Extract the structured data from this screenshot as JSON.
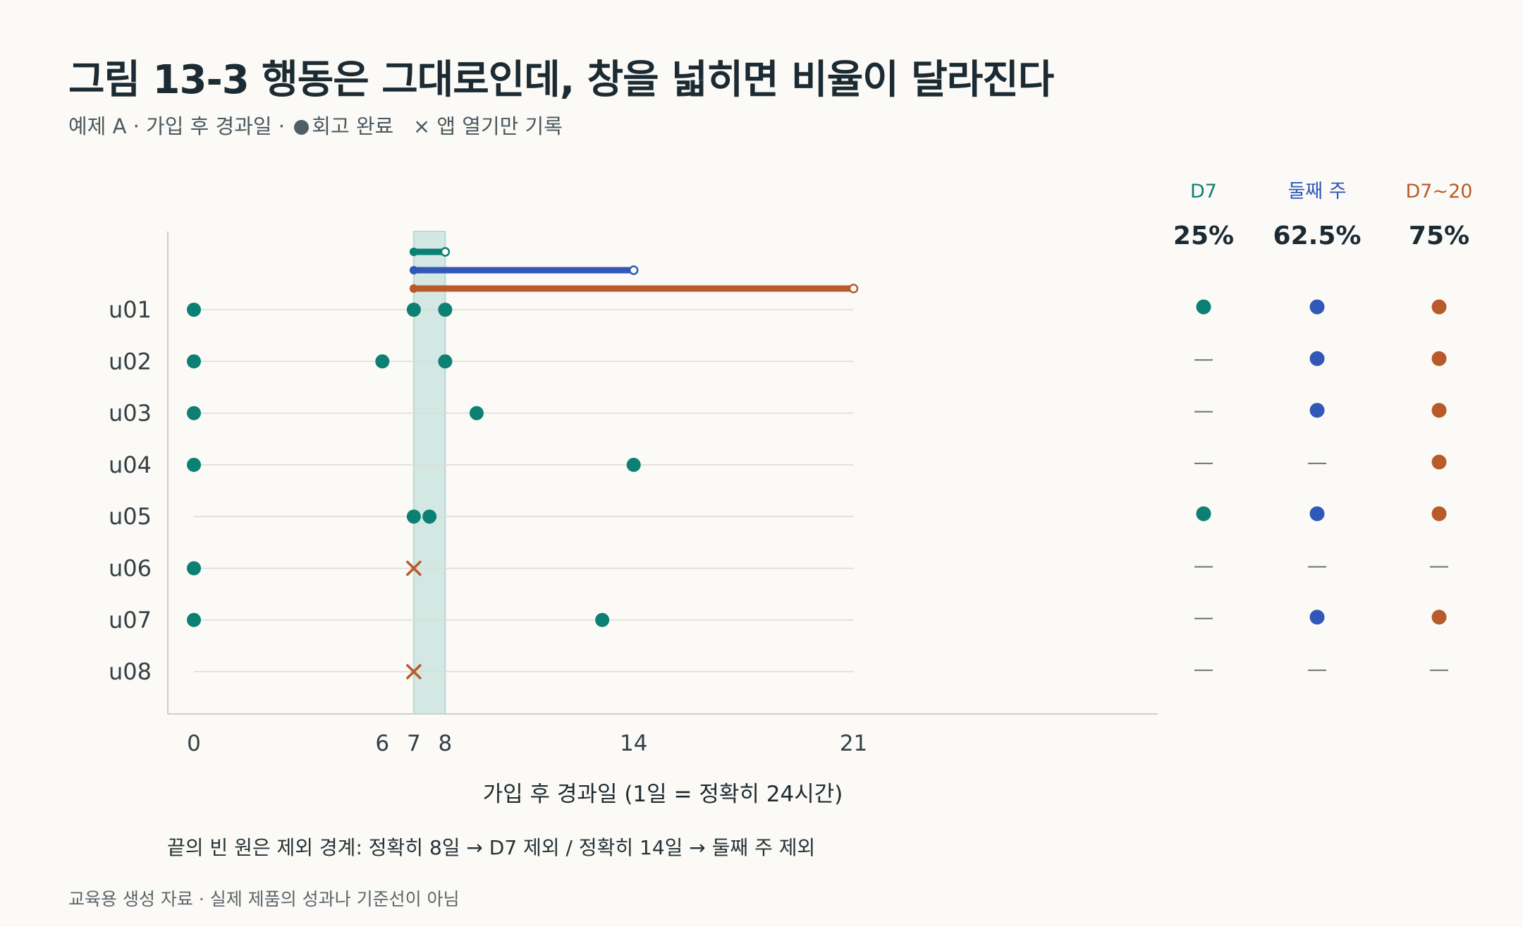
{
  "title": "그림 13-3  행동은 그대로인데, 창을 넓히면 비율이 달라진다",
  "subtitle": {
    "prefix": "예제 A · 가입 후 경과일 · ",
    "legend_dot_label": "회고 완료",
    "legend_x_symbol": "×",
    "legend_x_label": "앱 열기만 기록"
  },
  "colors": {
    "teal": "#0b8073",
    "blue": "#3158b8",
    "orange": "#b85a2a",
    "window_band": "#d3e8e3",
    "grid": "#dcdcd6",
    "axis": "#cfcfc8",
    "text": "#333f45",
    "dash": "#6a7378"
  },
  "caption": "끝의 빈 원은 제외 경계: 정확히 8일 → D7 제외 / 정확히 14일 → 둘째 주 제외",
  "footer": "교육용 생성 자료 · 실제 제품의 성과나 기준선이 아님",
  "chart_data": {
    "type": "scatter",
    "xlabel": "가입 후 경과일 (1일 = 정확히 24시간)",
    "xlim": [
      -0.6,
      21.5
    ],
    "x_ticks": [
      0,
      6,
      7,
      8,
      14,
      21
    ],
    "highlight_band": [
      7,
      8
    ],
    "users": [
      "u01",
      "u02",
      "u03",
      "u04",
      "u05",
      "u06",
      "u07",
      "u08"
    ],
    "events": [
      {
        "user": "u01",
        "day": 0,
        "kind": "retro"
      },
      {
        "user": "u01",
        "day": 7,
        "kind": "retro"
      },
      {
        "user": "u01",
        "day": 8,
        "kind": "retro"
      },
      {
        "user": "u02",
        "day": 0,
        "kind": "retro"
      },
      {
        "user": "u02",
        "day": 6,
        "kind": "retro"
      },
      {
        "user": "u02",
        "day": 8,
        "kind": "retro"
      },
      {
        "user": "u03",
        "day": 0,
        "kind": "retro"
      },
      {
        "user": "u03",
        "day": 9,
        "kind": "retro"
      },
      {
        "user": "u04",
        "day": 0,
        "kind": "retro"
      },
      {
        "user": "u04",
        "day": 14,
        "kind": "retro"
      },
      {
        "user": "u05",
        "day": 7,
        "kind": "retro"
      },
      {
        "user": "u05",
        "day": 7.5,
        "kind": "retro"
      },
      {
        "user": "u06",
        "day": 0,
        "kind": "retro"
      },
      {
        "user": "u06",
        "day": 7,
        "kind": "open"
      },
      {
        "user": "u07",
        "day": 0,
        "kind": "retro"
      },
      {
        "user": "u07",
        "day": 13,
        "kind": "retro"
      },
      {
        "user": "u08",
        "day": 7,
        "kind": "open"
      }
    ],
    "windows": [
      {
        "name": "D7",
        "start": 7,
        "end": 8,
        "color": "#0b8073",
        "rate": "25%",
        "hits": [
          true,
          false,
          false,
          false,
          true,
          false,
          false,
          false
        ]
      },
      {
        "name": "둘째 주",
        "start": 7,
        "end": 14,
        "color": "#3158b8",
        "rate": "62.5%",
        "hits": [
          true,
          true,
          true,
          false,
          true,
          false,
          true,
          false
        ]
      },
      {
        "name": "D7~20",
        "start": 7,
        "end": 21,
        "color": "#b85a2a",
        "rate": "75%",
        "hits": [
          true,
          true,
          true,
          true,
          true,
          false,
          true,
          false
        ]
      }
    ]
  }
}
